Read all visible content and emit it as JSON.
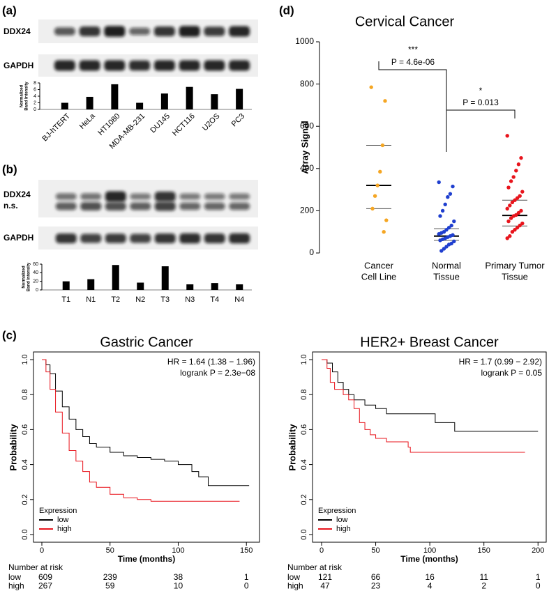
{
  "chart_data": [
    {
      "type": "bar",
      "panel_label": "(a)",
      "blot_labels": [
        "DDX24",
        "GAPDH"
      ],
      "y_label": [
        "Normalized",
        "Band Intensity"
      ],
      "categories": [
        "BJ-hTERT",
        "HeLa",
        "HT1080",
        "MDA-MB-231",
        "DU145",
        "HCT116",
        "U2OS",
        "PC3"
      ],
      "values": [
        2,
        3.8,
        7.6,
        2,
        4.8,
        6.8,
        4.6,
        6.2
      ],
      "color": "#000000",
      "ylim": [
        0,
        8
      ],
      "yticks": [
        0,
        2,
        4,
        6,
        8
      ]
    },
    {
      "type": "bar",
      "panel_label": "(b)",
      "blot_labels": [
        "DDX24",
        "n.s.",
        "GAPDH"
      ],
      "y_label": [
        "Normalized",
        "Band Intensity"
      ],
      "categories": [
        "T1",
        "N1",
        "T2",
        "N2",
        "T3",
        "N3",
        "T4",
        "N4"
      ],
      "values": [
        20,
        25,
        58,
        17,
        55,
        13,
        16,
        13
      ],
      "color": "#000000",
      "ylim": [
        0,
        60
      ],
      "yticks": [
        0,
        20,
        40,
        60
      ]
    },
    {
      "type": "scatter",
      "panel_label": "(d)",
      "title": "Cervical Cancer",
      "y_label": "Array Signal",
      "categories": [
        [
          "Cancer",
          "Cell Line"
        ],
        [
          "Normal",
          "Tissue"
        ],
        [
          "Primary Tumor",
          "Tissue"
        ]
      ],
      "groups": [
        {
          "color": "#f5a623",
          "values": [
            785,
            720,
            510,
            385,
            320,
            270,
            210,
            155,
            100
          ],
          "median": 320,
          "q1": 210,
          "q3": 510
        },
        {
          "color": "#1f3fcf",
          "values": [
            335,
            315,
            280,
            265,
            230,
            200,
            175,
            150,
            130,
            120,
            110,
            100,
            95,
            90,
            85,
            80,
            75,
            70,
            65,
            60,
            55,
            45,
            40,
            30,
            20,
            10
          ],
          "median": 80,
          "q1": 60,
          "q3": 115
        },
        {
          "color": "#e8141c",
          "values": [
            555,
            450,
            420,
            390,
            360,
            340,
            310,
            290,
            270,
            260,
            250,
            240,
            225,
            210,
            200,
            190,
            180,
            175,
            165,
            150,
            140,
            130,
            120,
            110,
            100,
            80,
            70
          ],
          "median": 178,
          "q1": 128,
          "q3": 250
        }
      ],
      "annotations": [
        "***",
        "P = 4.6e-06",
        "*",
        "P = 0.013"
      ],
      "ylim": [
        0,
        1000
      ],
      "yticks": [
        0,
        200,
        400,
        600,
        800,
        1000
      ]
    },
    {
      "type": "line",
      "panel_label": "(c)",
      "title": "Gastric Cancer",
      "annotations": [
        "HR = 1.64 (1.38 − 1.96)",
        "logrank P = 2.3e−08"
      ],
      "x_label": "Time (months)",
      "y_label": "Probability",
      "legend_title": "Expression",
      "series": [
        {
          "name": "low",
          "color": "#000000",
          "x": [
            0,
            3,
            6,
            10,
            15,
            20,
            25,
            30,
            35,
            40,
            50,
            60,
            70,
            80,
            90,
            100,
            110,
            115,
            122,
            152
          ],
          "values": [
            1,
            0.97,
            0.92,
            0.82,
            0.73,
            0.66,
            0.6,
            0.56,
            0.52,
            0.5,
            0.47,
            0.45,
            0.44,
            0.43,
            0.42,
            0.4,
            0.36,
            0.33,
            0.28,
            0.28
          ]
        },
        {
          "name": "high",
          "color": "#e8141c",
          "x": [
            0,
            3,
            6,
            10,
            15,
            20,
            25,
            30,
            35,
            40,
            50,
            60,
            70,
            80,
            145
          ],
          "values": [
            1,
            0.93,
            0.83,
            0.7,
            0.58,
            0.48,
            0.42,
            0.36,
            0.3,
            0.27,
            0.23,
            0.21,
            0.2,
            0.19,
            0.19
          ]
        }
      ],
      "xlim": [
        0,
        155
      ],
      "xticks": [
        0,
        50,
        100,
        150
      ],
      "ylim": [
        0,
        1
      ],
      "yticks": [
        {
          "value": 0,
          "label": "0.0"
        },
        {
          "value": 0.2,
          "label": "0.2"
        },
        {
          "value": 0.4,
          "label": "0.4"
        },
        {
          "value": 0.6,
          "label": "0.6"
        },
        {
          "value": 0.8,
          "label": "0.8"
        },
        {
          "value": 1,
          "label": "1.0"
        }
      ],
      "risk_title": "Number at risk",
      "risk_table": [
        {
          "name": "low",
          "color": "#000000",
          "values": [
            609,
            239,
            38,
            1
          ]
        },
        {
          "name": "high",
          "color": "#e8141c",
          "values": [
            267,
            59,
            10,
            0
          ]
        }
      ]
    },
    {
      "type": "line",
      "title": "HER2+ Breast Cancer",
      "annotations": [
        "HR = 1.7 (0.99 − 2.92)",
        "logrank P = 0.05"
      ],
      "x_label": "Time (months)",
      "y_label": "Probability",
      "legend_title": "Expression",
      "series": [
        {
          "name": "low",
          "color": "#000000",
          "x": [
            0,
            5,
            10,
            15,
            20,
            25,
            30,
            40,
            50,
            60,
            100,
            105,
            122,
            123,
            200
          ],
          "values": [
            1,
            0.98,
            0.93,
            0.87,
            0.83,
            0.8,
            0.77,
            0.74,
            0.72,
            0.69,
            0.69,
            0.64,
            0.64,
            0.59,
            0.59
          ]
        },
        {
          "name": "high",
          "color": "#e8141c",
          "x": [
            0,
            5,
            8,
            12,
            20,
            25,
            30,
            35,
            40,
            45,
            50,
            60,
            80,
            82,
            188
          ],
          "values": [
            1,
            0.95,
            0.87,
            0.83,
            0.8,
            0.77,
            0.72,
            0.64,
            0.6,
            0.57,
            0.55,
            0.53,
            0.5,
            0.47,
            0.47
          ]
        }
      ],
      "xlim": [
        0,
        205
      ],
      "xticks": [
        0,
        50,
        100,
        150,
        200
      ],
      "ylim": [
        0,
        1
      ],
      "yticks": [
        {
          "value": 0,
          "label": "0.0"
        },
        {
          "value": 0.2,
          "label": "0.2"
        },
        {
          "value": 0.4,
          "label": "0.4"
        },
        {
          "value": 0.6,
          "label": "0.6"
        },
        {
          "value": 0.8,
          "label": "0.8"
        },
        {
          "value": 1,
          "label": "1.0"
        }
      ],
      "risk_title": "Number at risk",
      "risk_table": [
        {
          "name": "low",
          "color": "#000000",
          "values": [
            121,
            66,
            16,
            11,
            1
          ]
        },
        {
          "name": "high",
          "color": "#e8141c",
          "values": [
            47,
            23,
            4,
            2,
            0
          ]
        }
      ]
    }
  ]
}
